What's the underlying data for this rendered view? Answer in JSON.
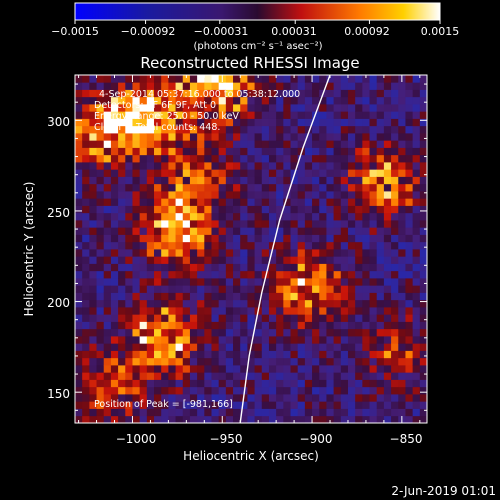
{
  "colorbar": {
    "tick_labels": [
      "−0.0015",
      "−0.00092",
      "−0.00031",
      "0.00031",
      "0.00092",
      "0.0015"
    ],
    "unit_label": "(photons cm⁻² s⁻¹ asec⁻²)",
    "range": [
      -0.0015,
      0.0015
    ]
  },
  "chart_data": {
    "type": "heatmap",
    "title": "Reconstructed RHESSI Image",
    "xlabel": "Heliocentric X (arcsec)",
    "ylabel": "Heliocentric Y (arcsec)",
    "xlim": [
      -1032,
      -836
    ],
    "ylim": [
      133,
      325
    ],
    "x_ticks": [
      -1000,
      -950,
      -900,
      -850
    ],
    "x_tick_labels": [
      "−1000",
      "−950",
      "−900",
      "−850"
    ],
    "y_ticks": [
      150,
      200,
      250,
      300
    ],
    "y_tick_labels": [
      "150",
      "200",
      "250",
      "300"
    ],
    "info_lines": [
      "4-Sep-2014 05:37:16.000 to 05:38:12.000",
      "Detectors: 3F 6F 9F, Att 0",
      "Energy Range: 25.0 - 50.0 keV",
      "Clean     Total counts: 448."
    ],
    "peak_label": "Position of Peak = [-981,166]",
    "peak": [
      -981,
      166
    ],
    "limb_curve": [
      [
        -940,
        133
      ],
      [
        -935,
        170
      ],
      [
        -928,
        205
      ],
      [
        -918,
        245
      ],
      [
        -905,
        285
      ],
      [
        -890,
        325
      ]
    ],
    "bright_sources": [
      {
        "x": -992,
        "y": 300,
        "strength": 0.9
      },
      {
        "x": -955,
        "y": 318,
        "strength": 1.0
      },
      {
        "x": -1018,
        "y": 292,
        "strength": 0.85
      },
      {
        "x": -978,
        "y": 238,
        "strength": 0.95
      },
      {
        "x": -985,
        "y": 178,
        "strength": 0.9
      },
      {
        "x": -905,
        "y": 205,
        "strength": 0.8
      },
      {
        "x": -862,
        "y": 265,
        "strength": 0.75
      },
      {
        "x": -965,
        "y": 268,
        "strength": 0.55
      },
      {
        "x": -1015,
        "y": 150,
        "strength": 0.6
      },
      {
        "x": -855,
        "y": 170,
        "strength": 0.45
      }
    ]
  },
  "footer": {
    "timestamp": "2-Jun-2019 01:01"
  }
}
